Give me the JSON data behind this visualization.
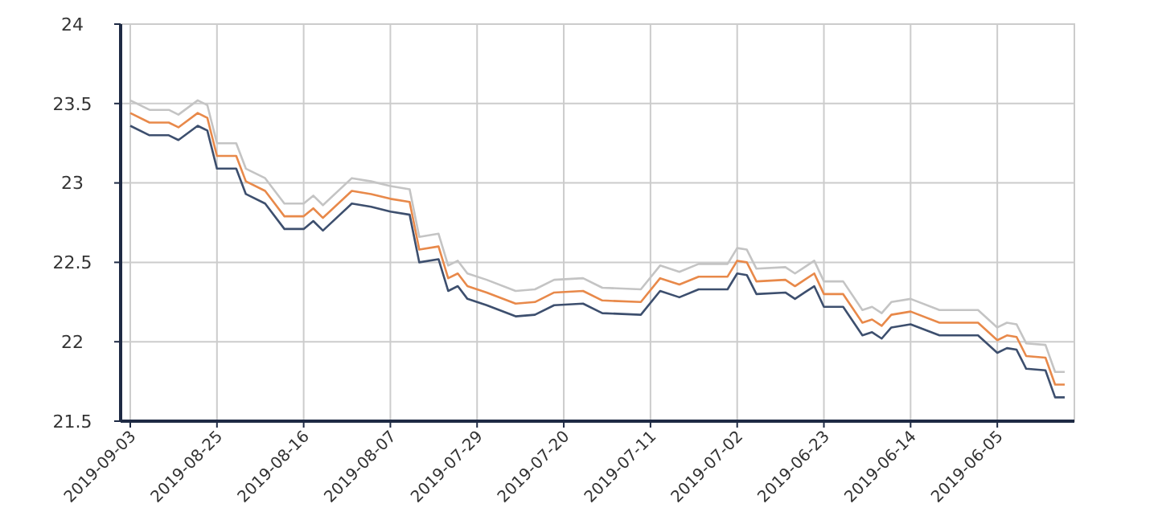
{
  "chart_data": {
    "type": "line",
    "x": [
      "2019-09-03",
      "2019-09-01",
      "2019-08-30",
      "2019-08-29",
      "2019-08-27",
      "2019-08-26",
      "2019-08-25",
      "2019-08-23",
      "2019-08-22",
      "2019-08-20",
      "2019-08-18",
      "2019-08-16",
      "2019-08-15",
      "2019-08-14",
      "2019-08-11",
      "2019-08-09",
      "2019-08-07",
      "2019-08-05",
      "2019-08-04",
      "2019-08-02",
      "2019-08-01",
      "2019-07-31",
      "2019-07-30",
      "2019-07-28",
      "2019-07-25",
      "2019-07-23",
      "2019-07-21",
      "2019-07-18",
      "2019-07-16",
      "2019-07-12",
      "2019-07-10",
      "2019-07-08",
      "2019-07-06",
      "2019-07-03",
      "2019-07-02",
      "2019-07-01",
      "2019-06-30",
      "2019-06-27",
      "2019-06-26",
      "2019-06-25",
      "2019-06-24",
      "2019-06-23",
      "2019-06-21",
      "2019-06-19",
      "2019-06-18",
      "2019-06-17",
      "2019-06-16",
      "2019-06-14",
      "2019-06-11",
      "2019-06-07",
      "2019-06-05",
      "2019-06-04",
      "2019-06-03",
      "2019-06-02",
      "2019-05-31",
      "2019-05-30",
      "2019-05-29"
    ],
    "series": [
      {
        "color": "#c4c4c4",
        "values": [
          23.52,
          23.46,
          23.46,
          23.43,
          23.52,
          23.49,
          23.25,
          23.25,
          23.09,
          23.03,
          22.87,
          22.87,
          22.92,
          22.86,
          23.03,
          23.01,
          22.98,
          22.96,
          22.66,
          22.68,
          22.48,
          22.51,
          22.43,
          22.39,
          22.32,
          22.33,
          22.39,
          22.4,
          22.34,
          22.33,
          22.48,
          22.44,
          22.49,
          22.49,
          22.59,
          22.58,
          22.46,
          22.47,
          22.43,
          22.47,
          22.51,
          22.38,
          22.38,
          22.2,
          22.22,
          22.18,
          22.25,
          22.27,
          22.2,
          22.2,
          22.09,
          22.12,
          22.11,
          21.99,
          21.98,
          21.81,
          21.81
        ]
      },
      {
        "color": "#e8894a",
        "values": [
          23.44,
          23.38,
          23.38,
          23.35,
          23.44,
          23.41,
          23.17,
          23.17,
          23.01,
          22.95,
          22.79,
          22.79,
          22.84,
          22.78,
          22.95,
          22.93,
          22.9,
          22.88,
          22.58,
          22.6,
          22.4,
          22.43,
          22.35,
          22.31,
          22.24,
          22.25,
          22.31,
          22.32,
          22.26,
          22.25,
          22.4,
          22.36,
          22.41,
          22.41,
          22.51,
          22.5,
          22.38,
          22.39,
          22.35,
          22.39,
          22.43,
          22.3,
          22.3,
          22.12,
          22.14,
          22.1,
          22.17,
          22.19,
          22.12,
          22.12,
          22.01,
          22.04,
          22.03,
          21.91,
          21.9,
          21.73,
          21.73
        ]
      },
      {
        "color": "#3d4f6e",
        "values": [
          23.36,
          23.3,
          23.3,
          23.27,
          23.36,
          23.33,
          23.09,
          23.09,
          22.93,
          22.87,
          22.71,
          22.71,
          22.76,
          22.7,
          22.87,
          22.85,
          22.82,
          22.8,
          22.5,
          22.52,
          22.32,
          22.35,
          22.27,
          22.23,
          22.16,
          22.17,
          22.23,
          22.24,
          22.18,
          22.17,
          22.32,
          22.28,
          22.33,
          22.33,
          22.43,
          22.42,
          22.3,
          22.31,
          22.27,
          22.31,
          22.35,
          22.22,
          22.22,
          22.04,
          22.06,
          22.02,
          22.09,
          22.11,
          22.04,
          22.04,
          21.93,
          21.96,
          21.95,
          21.83,
          21.82,
          21.65,
          21.65
        ]
      }
    ],
    "xlim": [
      "2019-09-04",
      "2019-05-28"
    ],
    "xticks": [
      "2019-09-03",
      "2019-08-25",
      "2019-08-16",
      "2019-08-07",
      "2019-07-29",
      "2019-07-20",
      "2019-07-11",
      "2019-07-02",
      "2019-06-23",
      "2019-06-14",
      "2019-06-05"
    ],
    "ylim": [
      21.5,
      24
    ],
    "yticks": [
      21.5,
      22,
      22.5,
      23,
      23.5,
      24
    ],
    "grid": true,
    "marker": "none",
    "line_style": "solid"
  }
}
